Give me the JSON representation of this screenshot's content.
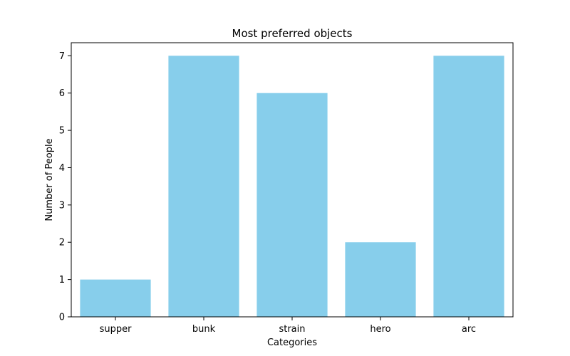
{
  "chart_data": {
    "type": "bar",
    "title": "Most preferred objects",
    "xlabel": "Categories",
    "ylabel": "Number of People",
    "categories": [
      "supper",
      "bunk",
      "strain",
      "hero",
      "arc"
    ],
    "values": [
      1,
      7,
      6,
      2,
      7
    ],
    "ylim": [
      0,
      7.35
    ],
    "yticks": [
      0,
      1,
      2,
      3,
      4,
      5,
      6,
      7
    ],
    "bar_color": "#87CEEB",
    "grid": false,
    "legend": "none"
  }
}
